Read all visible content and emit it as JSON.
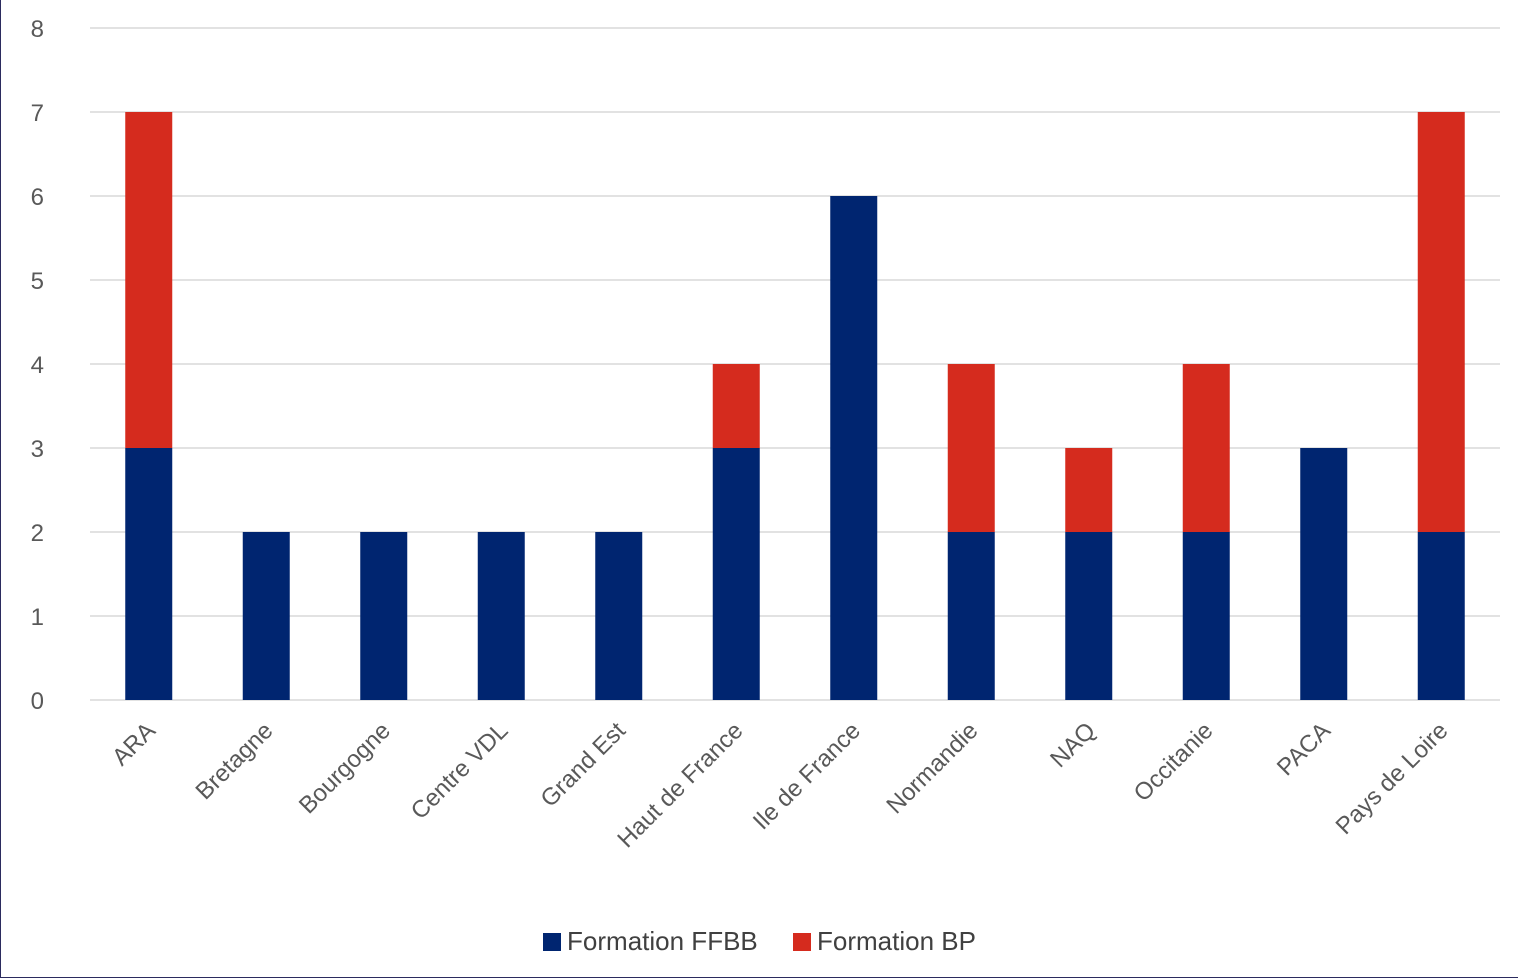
{
  "chart_data": {
    "type": "bar",
    "stacked": true,
    "categories": [
      "ARA",
      "Bretagne",
      "Bourgogne",
      "Centre VDL",
      "Grand Est",
      "Haut de France",
      "Ile de France",
      "Normandie",
      "NAQ",
      "Occitanie",
      "PACA",
      "Pays de Loire"
    ],
    "series": [
      {
        "name": "Formation FFBB",
        "color": "#002570",
        "values": [
          3,
          2,
          2,
          2,
          2,
          3,
          6,
          2,
          2,
          2,
          3,
          2
        ]
      },
      {
        "name": "Formation BP",
        "color": "#d52b1e",
        "values": [
          4,
          0,
          0,
          0,
          0,
          1,
          0,
          2,
          1,
          2,
          0,
          5
        ]
      }
    ],
    "yticks": [
      "0",
      "1",
      "2",
      "3",
      "4",
      "5",
      "6",
      "7",
      "8"
    ],
    "ylim": [
      0,
      8
    ],
    "grid": true,
    "legend_position": "bottom"
  }
}
